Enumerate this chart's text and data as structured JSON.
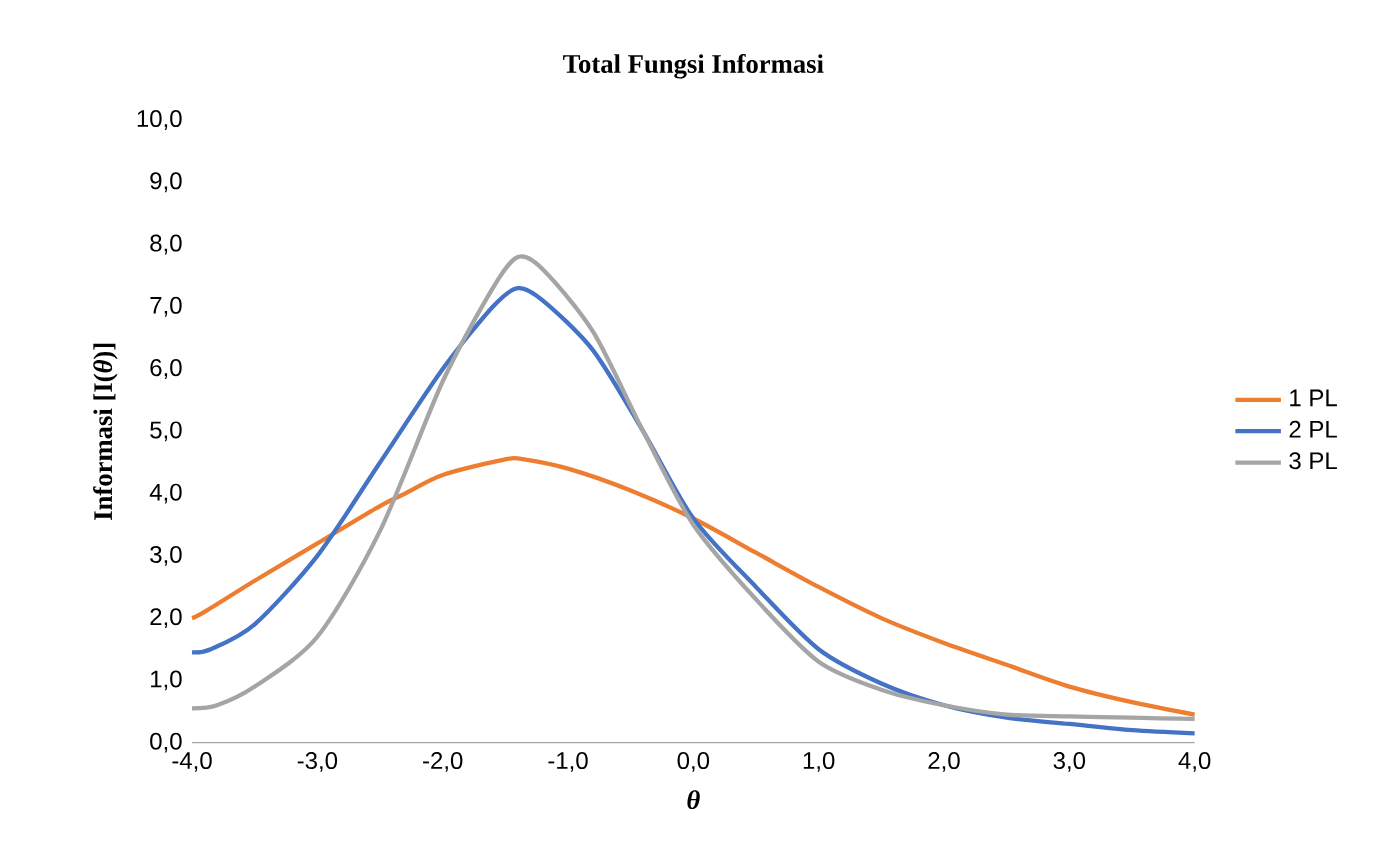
{
  "chart_data": {
    "type": "line",
    "title": "Total Fungsi Informasi",
    "xlabel": "*θ*",
    "ylabel": "Informasi [I(*θ*)]",
    "xlim": [
      -4,
      4
    ],
    "ylim": [
      0,
      10
    ],
    "xticks": [
      {
        "value": -4,
        "label": "-4,0"
      },
      {
        "value": -3,
        "label": "-3,0"
      },
      {
        "value": -2,
        "label": "-2,0"
      },
      {
        "value": -1,
        "label": "-1,0"
      },
      {
        "value": 0,
        "label": "0,0"
      },
      {
        "value": 1,
        "label": "1,0"
      },
      {
        "value": 2,
        "label": "2,0"
      },
      {
        "value": 3,
        "label": "3,0"
      },
      {
        "value": 4,
        "label": "4,0"
      }
    ],
    "yticks": [
      {
        "value": 0,
        "label": "0,0"
      },
      {
        "value": 1,
        "label": "1,0"
      },
      {
        "value": 2,
        "label": "2,0"
      },
      {
        "value": 3,
        "label": "3,0"
      },
      {
        "value": 4,
        "label": "4,0"
      },
      {
        "value": 5,
        "label": "5,0"
      },
      {
        "value": 6,
        "label": "6,0"
      },
      {
        "value": 7,
        "label": "7,0"
      },
      {
        "value": 8,
        "label": "8,0"
      },
      {
        "value": 9,
        "label": "9,0"
      },
      {
        "value": 10,
        "label": "10,0"
      }
    ],
    "legend": "right",
    "marker": "none",
    "line_style": "solid",
    "grid": false,
    "series": [
      {
        "name": "1 PL",
        "color": "#ed7d31",
        "x": [
          -4,
          -3.9,
          -3.5,
          -3,
          -2.5,
          -2.3,
          -2,
          -1.5,
          -1.35,
          -1,
          -0.5,
          0,
          0.5,
          1,
          1.5,
          2,
          2.5,
          3,
          3.5,
          4
        ],
        "values": [
          2.0,
          2.1,
          2.6,
          3.2,
          3.8,
          4.0,
          4.3,
          4.55,
          4.55,
          4.4,
          4.05,
          3.6,
          3.05,
          2.5,
          2.0,
          1.6,
          1.25,
          0.9,
          0.65,
          0.45
        ]
      },
      {
        "name": "2 PL",
        "color": "#4472c4",
        "x": [
          -4,
          -3.85,
          -3.5,
          -3,
          -2.5,
          -2,
          -1.6,
          -1.4,
          -1.2,
          -0.8,
          -0.4,
          0,
          0.5,
          1,
          1.5,
          2,
          2.5,
          3,
          3.5,
          4
        ],
        "values": [
          1.45,
          1.5,
          1.9,
          3.0,
          4.5,
          6.0,
          7.0,
          7.3,
          7.1,
          6.3,
          5.0,
          3.6,
          2.5,
          1.5,
          0.95,
          0.6,
          0.4,
          0.3,
          0.2,
          0.15
        ]
      },
      {
        "name": "3 PL",
        "color": "#a5a5a5",
        "x": [
          -4,
          -3.8,
          -3.5,
          -3,
          -2.5,
          -2,
          -1.6,
          -1.4,
          -1.2,
          -0.8,
          -0.4,
          0,
          0.5,
          1,
          1.5,
          2,
          2.5,
          3,
          3.5,
          4
        ],
        "values": [
          0.55,
          0.6,
          0.9,
          1.7,
          3.4,
          5.8,
          7.3,
          7.8,
          7.6,
          6.6,
          5.0,
          3.5,
          2.3,
          1.3,
          0.85,
          0.6,
          0.45,
          0.42,
          0.4,
          0.38
        ]
      }
    ]
  }
}
